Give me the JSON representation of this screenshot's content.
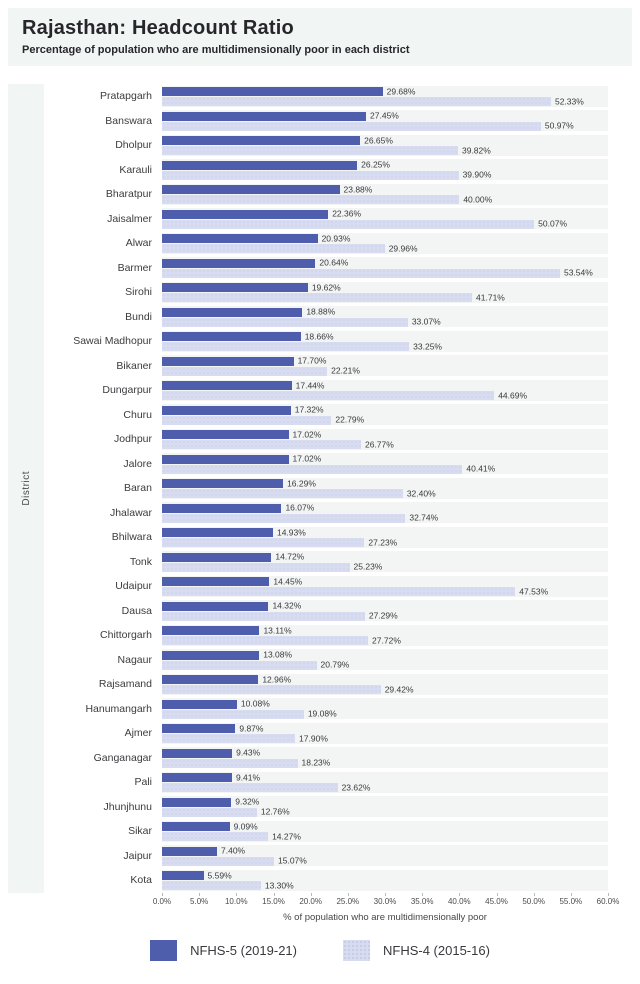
{
  "header": {
    "title": "Rajasthan: Headcount Ratio",
    "subtitle": "Percentage of population who are multidimensionally poor in each district"
  },
  "chart_data": {
    "type": "bar",
    "orientation": "horizontal",
    "title": "Rajasthan: Headcount Ratio",
    "subtitle": "Percentage of population who are multidimensionally poor in each district",
    "xlabel": "% of population who are multidimensionally poor",
    "ylabel": "District",
    "xlim": [
      0,
      60
    ],
    "grid": false,
    "legend_position": "bottom",
    "value_suffix": "%",
    "x_ticks": [
      "0.0%",
      "5.0%",
      "10.0%",
      "15.0%",
      "20.0%",
      "25.0%",
      "30.0%",
      "35.0%",
      "40.0%",
      "45.0%",
      "50.0%",
      "55.0%",
      "60.0%"
    ],
    "categories": [
      "Pratapgarh",
      "Banswara",
      "Dholpur",
      "Karauli",
      "Bharatpur",
      "Jaisalmer",
      "Alwar",
      "Barmer",
      "Sirohi",
      "Bundi",
      "Sawai Madhopur",
      "Bikaner",
      "Dungarpur",
      "Churu",
      "Jodhpur",
      "Jalore",
      "Baran",
      "Jhalawar",
      "Bhilwara",
      "Tonk",
      "Udaipur",
      "Dausa",
      "Chittorgarh",
      "Nagaur",
      "Rajsamand",
      "Hanumangarh",
      "Ajmer",
      "Ganganagar",
      "Pali",
      "Jhunjhunu",
      "Sikar",
      "Jaipur",
      "Kota"
    ],
    "series": [
      {
        "name": "NFHS-5 (2019-21)",
        "color": "#4e5dac",
        "values": [
          29.68,
          27.45,
          26.65,
          26.25,
          23.88,
          22.36,
          20.93,
          20.64,
          19.62,
          18.88,
          18.66,
          17.7,
          17.44,
          17.32,
          17.02,
          17.02,
          16.29,
          16.07,
          14.93,
          14.72,
          14.45,
          14.32,
          13.11,
          13.08,
          12.96,
          10.08,
          9.87,
          9.43,
          9.41,
          9.32,
          9.09,
          7.4,
          5.59
        ]
      },
      {
        "name": "NFHS-4 (2015-16)",
        "color": "#d8dcf0",
        "values": [
          52.33,
          50.97,
          39.82,
          39.9,
          40.0,
          50.07,
          29.96,
          53.54,
          41.71,
          33.07,
          33.25,
          22.21,
          44.69,
          22.79,
          26.77,
          40.41,
          32.4,
          32.74,
          27.23,
          25.23,
          47.53,
          27.29,
          27.72,
          20.79,
          29.42,
          19.08,
          17.9,
          18.23,
          23.62,
          12.76,
          14.27,
          15.07,
          13.3
        ]
      }
    ]
  },
  "colors": {
    "band_background": "#f2f5f4",
    "header_background": "#f1f5f4",
    "text": "#2b2b2f"
  }
}
